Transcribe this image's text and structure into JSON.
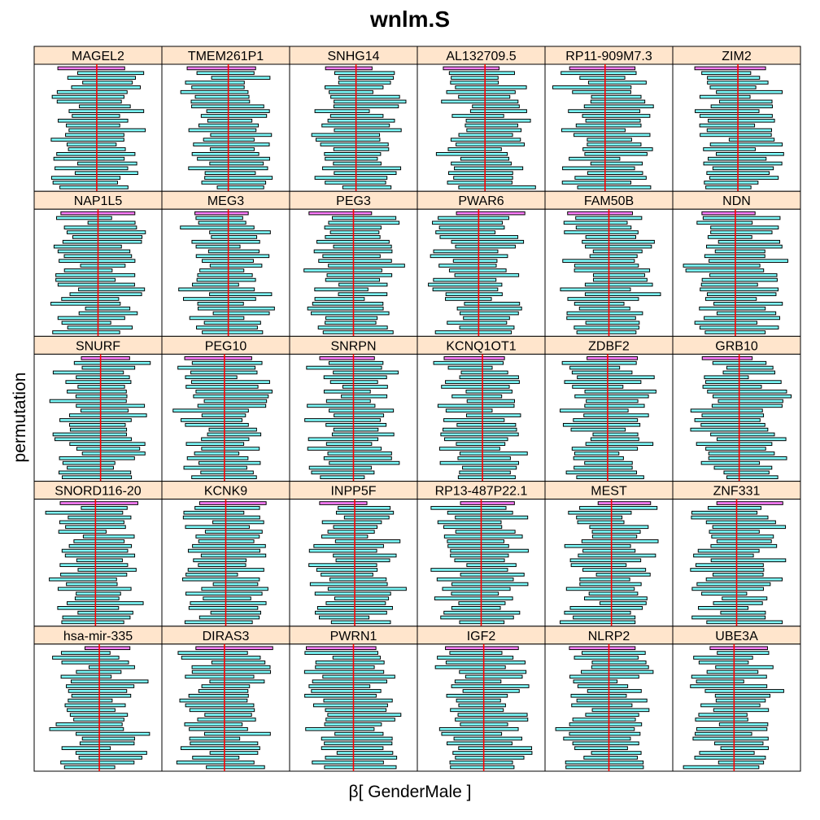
{
  "chart_data": {
    "type": "bar",
    "title": "wnlm.S",
    "xlabel": "β[ GenderMale ]",
    "ylabel": "permutation",
    "layout": {
      "columns": 6,
      "rows": 5
    },
    "colors": {
      "strip_bg": "#ffe5cc",
      "observed_bar": "#ff80ff",
      "permuted_bar": "#80ffff",
      "bar_border": "#000000",
      "reference_line": "#ff0000"
    },
    "panels": [
      {
        "label": "MAGEL2",
        "observed_x": 0.49
      },
      {
        "label": "TMEM261P1",
        "observed_x": 0.52
      },
      {
        "label": "SNHG14",
        "observed_x": 0.52
      },
      {
        "label": "AL132709.5",
        "observed_x": 0.53
      },
      {
        "label": "RP11-909M7.3",
        "observed_x": 0.47
      },
      {
        "label": "ZIM2",
        "observed_x": 0.51
      },
      {
        "label": "NAP1L5",
        "observed_x": 0.5
      },
      {
        "label": "MEG3",
        "observed_x": 0.52
      },
      {
        "label": "PEG3",
        "observed_x": 0.5
      },
      {
        "label": "PWAR6",
        "observed_x": 0.48
      },
      {
        "label": "FAM50B",
        "observed_x": 0.5
      },
      {
        "label": "NDN",
        "observed_x": 0.49
      },
      {
        "label": "SNURF",
        "observed_x": 0.52
      },
      {
        "label": "PEG10",
        "observed_x": 0.49
      },
      {
        "label": "SNRPN",
        "observed_x": 0.5
      },
      {
        "label": "KCNQ1OT1",
        "observed_x": 0.51
      },
      {
        "label": "ZDBF2",
        "observed_x": 0.49
      },
      {
        "label": "GRB10",
        "observed_x": 0.52
      },
      {
        "label": "SNORD116-20",
        "observed_x": 0.48
      },
      {
        "label": "KCNK9",
        "observed_x": 0.5
      },
      {
        "label": "INPP5F",
        "observed_x": 0.51
      },
      {
        "label": "RP13-487P22.1",
        "observed_x": 0.5
      },
      {
        "label": "MEST",
        "observed_x": 0.52
      },
      {
        "label": "ZNF331",
        "observed_x": 0.5
      },
      {
        "label": "hsa-mir-335",
        "observed_x": 0.51
      },
      {
        "label": "DIRAS3",
        "observed_x": 0.49
      },
      {
        "label": "PWRN1",
        "observed_x": 0.5
      },
      {
        "label": "IGF2",
        "observed_x": 0.52
      },
      {
        "label": "NLRP2",
        "observed_x": 0.5
      },
      {
        "label": "UBE3A",
        "observed_x": 0.48
      }
    ]
  }
}
